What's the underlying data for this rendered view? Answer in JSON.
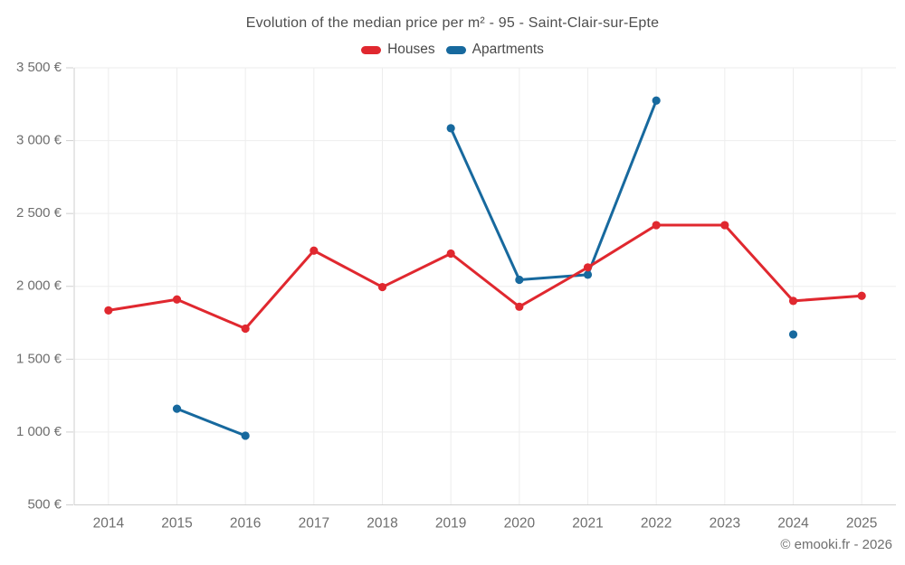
{
  "chart_data": {
    "type": "line",
    "title": "Evolution of the median price per m² - 95 - Saint-Clair-sur-Epte",
    "x": [
      "2014",
      "2015",
      "2016",
      "2017",
      "2018",
      "2019",
      "2020",
      "2021",
      "2022",
      "2023",
      "2024",
      "2025"
    ],
    "series": [
      {
        "name": "Houses",
        "color": "#e0282f",
        "values": [
          1835,
          1910,
          1710,
          2245,
          1995,
          2225,
          1860,
          2130,
          2420,
          2420,
          1900,
          1935
        ]
      },
      {
        "name": "Apartments",
        "color": "#17699e",
        "values": [
          null,
          1160,
          975,
          null,
          null,
          3085,
          2045,
          2080,
          3275,
          null,
          1670,
          null
        ]
      }
    ],
    "ylabel": "",
    "xlabel": "",
    "ylim": [
      500,
      3500
    ],
    "y_tick_step": 500,
    "y_tick_labels": [
      "500 €",
      "1 000 €",
      "1 500 €",
      "2 000 €",
      "2 500 €",
      "3 000 €",
      "3 500 €"
    ],
    "currency": "€",
    "grid": true,
    "legend_position": "top"
  },
  "footer": {
    "copyright": "© emooki.fr - 2026"
  }
}
